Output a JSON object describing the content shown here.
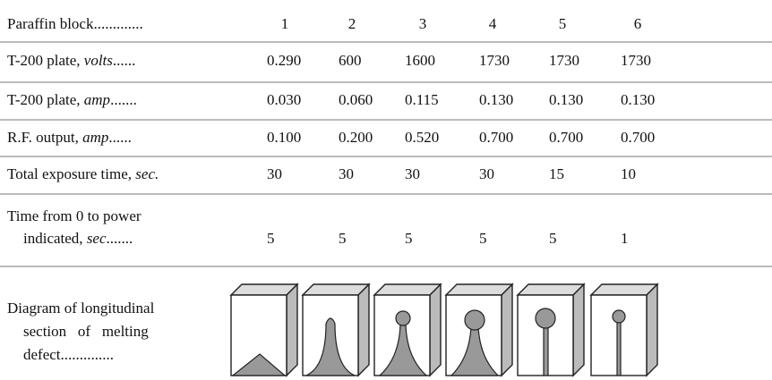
{
  "table": {
    "header": {
      "lines": [
        [
          {
            "text": "Paraffin block.............",
            "italic": false
          }
        ]
      ],
      "values": [
        "1",
        "2",
        "3",
        "4",
        "5",
        "6"
      ]
    },
    "rows": [
      {
        "lines": [
          [
            {
              "text": "T-200 plate, ",
              "italic": false
            },
            {
              "text": "volts",
              "italic": true
            },
            {
              "text": "......",
              "italic": false
            }
          ]
        ],
        "values": [
          "0.290",
          "600",
          "1600",
          "1730",
          "1730",
          "1730"
        ]
      },
      {
        "lines": [
          [
            {
              "text": "T-200 plate, ",
              "italic": false
            },
            {
              "text": "amp",
              "italic": true
            },
            {
              "text": ".......",
              "italic": false
            }
          ]
        ],
        "values": [
          "0.030",
          "0.060",
          "0.115",
          "0.130",
          "0.130",
          "0.130"
        ]
      },
      {
        "lines": [
          [
            {
              "text": "R.F. output, ",
              "italic": false
            },
            {
              "text": "amp",
              "italic": true
            },
            {
              "text": "......",
              "italic": false
            }
          ]
        ],
        "values": [
          "0.100",
          "0.200",
          "0.520",
          "0.700",
          "0.700",
          "0.700"
        ]
      },
      {
        "lines": [
          [
            {
              "text": "Total exposure time, ",
              "italic": false
            },
            {
              "text": "sec.",
              "italic": true
            }
          ]
        ],
        "values": [
          "30",
          "30",
          "30",
          "30",
          "15",
          "10"
        ]
      },
      {
        "lines": [
          [
            {
              "text": "Time from 0 to power",
              "italic": false
            }
          ],
          [
            {
              "text": "indicated, ",
              "italic": false
            },
            {
              "text": "sec",
              "italic": true
            },
            {
              "text": ".......",
              "italic": false
            }
          ]
        ],
        "values": [
          "5",
          "5",
          "5",
          "5",
          "5",
          "1"
        ]
      },
      {
        "lines": [
          [
            {
              "text": "Diagram of longitudinal",
              "italic": false
            }
          ],
          [
            {
              "text": "section   of   melting",
              "italic": false
            }
          ],
          [
            {
              "text": "defect..............",
              "italic": false
            }
          ]
        ]
      }
    ]
  }
}
